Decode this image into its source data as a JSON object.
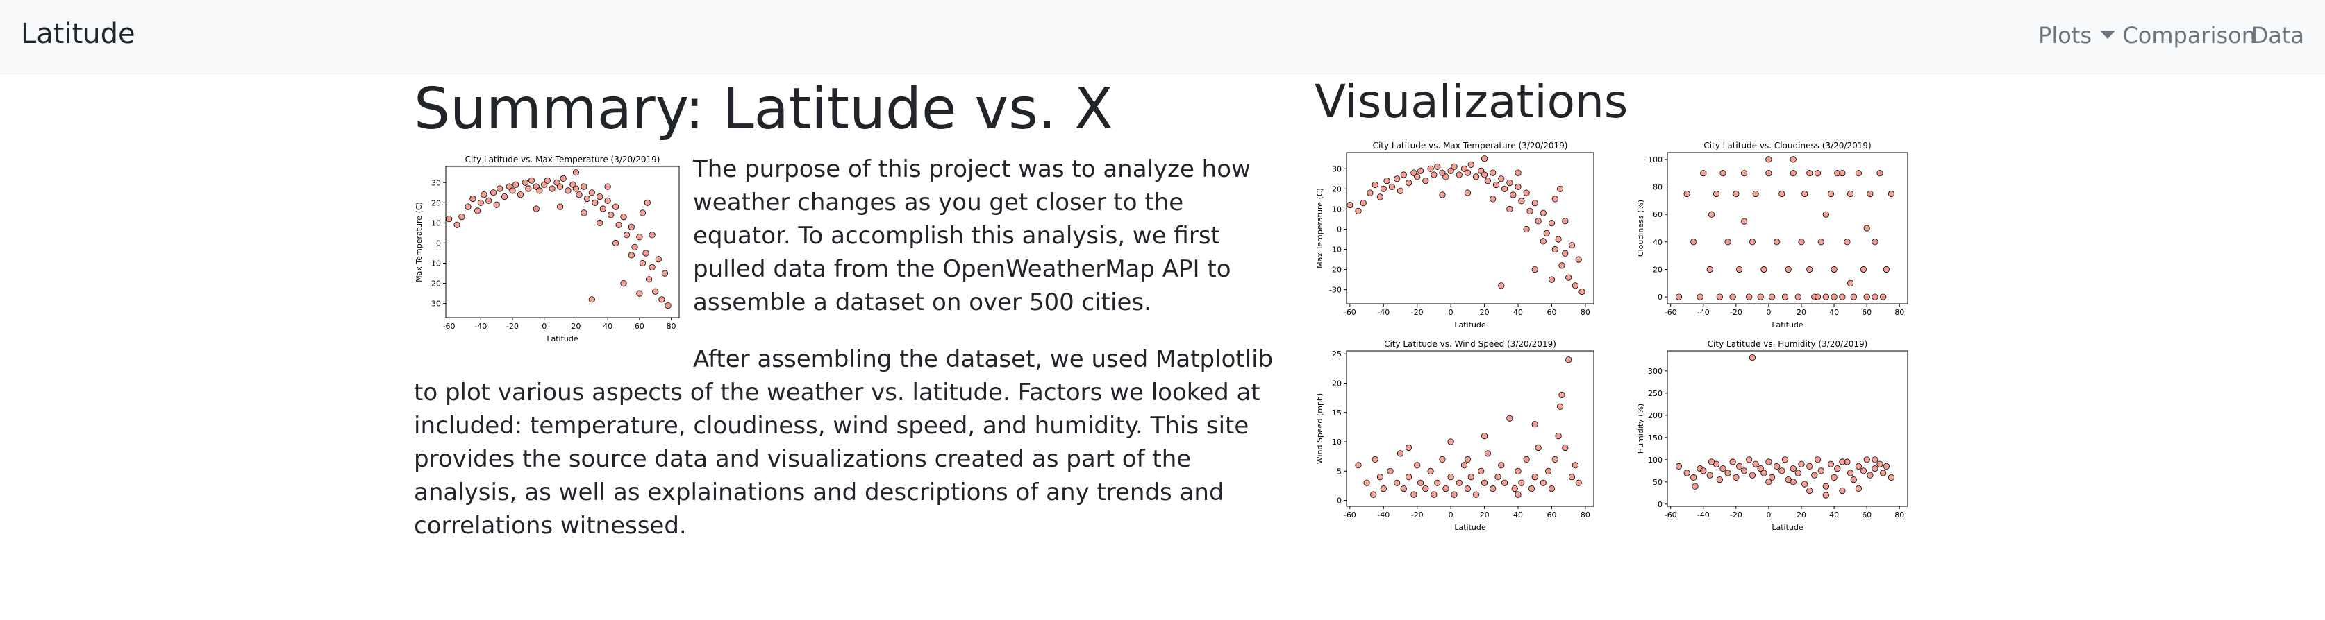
{
  "navbar": {
    "brand": "Latitude",
    "links": [
      {
        "label": "Plots",
        "dropdown": true
      },
      {
        "label": "Comparison",
        "dropdown": false
      },
      {
        "label": "Data",
        "dropdown": false
      }
    ]
  },
  "summary": {
    "title": "Summary: Latitude vs. X",
    "paragraph1": "The purpose of this project was to analyze how weather changes as you get closer to the equator. To accomplish this analysis, we first pulled data from the OpenWeatherMap API to assemble a dataset on over 500 cities.",
    "paragraph2": "After assembling the dataset, we used Matplotlib to plot various aspects of the weather vs. latitude. Factors we looked at included: temperature, cloudiness, wind speed, and humidity. This site provides the source data and visualizations created as part of the analysis, as well as explainations and descriptions of any trends and correlations witnessed."
  },
  "visualizations": {
    "title": "Visualizations"
  },
  "colors": {
    "navbar_bg": "#f8f9fa",
    "marker_fill": "#f08070",
    "marker_edge": "#000000"
  },
  "chart_data": [
    {
      "id": "summary-temp",
      "type": "scatter",
      "title": "City Latitude vs. Max Temperature (3/20/2019)",
      "xlabel": "Latitude",
      "ylabel": "Max Temperature (C)",
      "xlim": [
        -62,
        85
      ],
      "ylim": [
        -37,
        38
      ],
      "xticks": [
        -60,
        -40,
        -20,
        0,
        20,
        40,
        60,
        80
      ],
      "yticks": [
        -30,
        -20,
        -10,
        0,
        10,
        20,
        30
      ],
      "points": [
        [
          -55,
          9
        ],
        [
          -52,
          13
        ],
        [
          -48,
          18
        ],
        [
          -45,
          22
        ],
        [
          -42,
          16
        ],
        [
          -40,
          20
        ],
        [
          -38,
          24
        ],
        [
          -35,
          21
        ],
        [
          -32,
          25
        ],
        [
          -30,
          19
        ],
        [
          -28,
          27
        ],
        [
          -25,
          23
        ],
        [
          -22,
          28
        ],
        [
          -20,
          26
        ],
        [
          -18,
          29
        ],
        [
          -15,
          24
        ],
        [
          -12,
          30
        ],
        [
          -10,
          27
        ],
        [
          -8,
          31
        ],
        [
          -5,
          28
        ],
        [
          -3,
          26
        ],
        [
          0,
          29
        ],
        [
          2,
          31
        ],
        [
          5,
          27
        ],
        [
          8,
          30
        ],
        [
          10,
          28
        ],
        [
          12,
          32
        ],
        [
          15,
          26
        ],
        [
          18,
          29
        ],
        [
          20,
          27
        ],
        [
          22,
          24
        ],
        [
          25,
          28
        ],
        [
          27,
          22
        ],
        [
          30,
          25
        ],
        [
          32,
          20
        ],
        [
          35,
          23
        ],
        [
          37,
          17
        ],
        [
          40,
          21
        ],
        [
          42,
          14
        ],
        [
          45,
          18
        ],
        [
          47,
          9
        ],
        [
          50,
          13
        ],
        [
          52,
          4
        ],
        [
          55,
          8
        ],
        [
          57,
          -2
        ],
        [
          60,
          3
        ],
        [
          62,
          -10
        ],
        [
          64,
          -5
        ],
        [
          66,
          -18
        ],
        [
          68,
          -12
        ],
        [
          70,
          -24
        ],
        [
          72,
          -8
        ],
        [
          74,
          -28
        ],
        [
          76,
          -15
        ],
        [
          78,
          -31
        ],
        [
          35,
          10
        ],
        [
          45,
          0
        ],
        [
          55,
          -6
        ],
        [
          62,
          15
        ],
        [
          -60,
          12
        ],
        [
          30,
          -28
        ],
        [
          50,
          -20
        ],
        [
          68,
          4
        ],
        [
          40,
          28
        ],
        [
          -5,
          17
        ],
        [
          20,
          35
        ],
        [
          60,
          -25
        ],
        [
          10,
          18
        ],
        [
          25,
          15
        ],
        [
          65,
          20
        ]
      ]
    },
    {
      "id": "viz-temp",
      "type": "scatter",
      "title": "City Latitude vs. Max Temperature (3/20/2019)",
      "xlabel": "Latitude",
      "ylabel": "Max Temperature (C)",
      "xlim": [
        -62,
        85
      ],
      "ylim": [
        -37,
        38
      ],
      "xticks": [
        -60,
        -40,
        -20,
        0,
        20,
        40,
        60,
        80
      ],
      "yticks": [
        -30,
        -20,
        -10,
        0,
        10,
        20,
        30
      ],
      "points": [
        [
          -55,
          9
        ],
        [
          -52,
          13
        ],
        [
          -48,
          18
        ],
        [
          -45,
          22
        ],
        [
          -42,
          16
        ],
        [
          -40,
          20
        ],
        [
          -38,
          24
        ],
        [
          -35,
          21
        ],
        [
          -32,
          25
        ],
        [
          -30,
          19
        ],
        [
          -28,
          27
        ],
        [
          -25,
          23
        ],
        [
          -22,
          28
        ],
        [
          -20,
          26
        ],
        [
          -18,
          29
        ],
        [
          -15,
          24
        ],
        [
          -12,
          30
        ],
        [
          -10,
          27
        ],
        [
          -8,
          31
        ],
        [
          -5,
          28
        ],
        [
          -3,
          26
        ],
        [
          0,
          29
        ],
        [
          2,
          31
        ],
        [
          5,
          27
        ],
        [
          8,
          30
        ],
        [
          10,
          28
        ],
        [
          12,
          32
        ],
        [
          15,
          26
        ],
        [
          18,
          29
        ],
        [
          20,
          27
        ],
        [
          22,
          24
        ],
        [
          25,
          28
        ],
        [
          27,
          22
        ],
        [
          30,
          25
        ],
        [
          32,
          20
        ],
        [
          35,
          23
        ],
        [
          37,
          17
        ],
        [
          40,
          21
        ],
        [
          42,
          14
        ],
        [
          45,
          18
        ],
        [
          47,
          9
        ],
        [
          50,
          13
        ],
        [
          52,
          4
        ],
        [
          55,
          8
        ],
        [
          57,
          -2
        ],
        [
          60,
          3
        ],
        [
          62,
          -10
        ],
        [
          64,
          -5
        ],
        [
          66,
          -18
        ],
        [
          68,
          -12
        ],
        [
          70,
          -24
        ],
        [
          72,
          -8
        ],
        [
          74,
          -28
        ],
        [
          76,
          -15
        ],
        [
          78,
          -31
        ],
        [
          35,
          10
        ],
        [
          45,
          0
        ],
        [
          55,
          -6
        ],
        [
          62,
          15
        ],
        [
          -60,
          12
        ],
        [
          30,
          -28
        ],
        [
          50,
          -20
        ],
        [
          68,
          4
        ],
        [
          40,
          28
        ],
        [
          -5,
          17
        ],
        [
          20,
          35
        ],
        [
          60,
          -25
        ],
        [
          10,
          18
        ],
        [
          25,
          15
        ],
        [
          65,
          20
        ]
      ]
    },
    {
      "id": "viz-cloud",
      "type": "scatter",
      "title": "City Latitude vs. Cloudiness (3/20/2019)",
      "xlabel": "Latitude",
      "ylabel": "Cloudiness (%)",
      "xlim": [
        -62,
        85
      ],
      "ylim": [
        -5,
        105
      ],
      "xticks": [
        -60,
        -40,
        -20,
        0,
        20,
        40,
        60,
        80
      ],
      "yticks": [
        0,
        20,
        40,
        60,
        80,
        100
      ],
      "points": [
        [
          -55,
          0
        ],
        [
          -50,
          75
        ],
        [
          -46,
          40
        ],
        [
          -42,
          0
        ],
        [
          -40,
          90
        ],
        [
          -36,
          20
        ],
        [
          -32,
          75
        ],
        [
          -30,
          0
        ],
        [
          -28,
          90
        ],
        [
          -25,
          40
        ],
        [
          -22,
          0
        ],
        [
          -20,
          75
        ],
        [
          -18,
          20
        ],
        [
          -15,
          90
        ],
        [
          -12,
          0
        ],
        [
          -10,
          40
        ],
        [
          -8,
          75
        ],
        [
          -5,
          0
        ],
        [
          -3,
          20
        ],
        [
          0,
          90
        ],
        [
          2,
          0
        ],
        [
          5,
          40
        ],
        [
          8,
          75
        ],
        [
          10,
          0
        ],
        [
          12,
          20
        ],
        [
          15,
          90
        ],
        [
          18,
          0
        ],
        [
          20,
          40
        ],
        [
          22,
          75
        ],
        [
          25,
          20
        ],
        [
          28,
          0
        ],
        [
          30,
          90
        ],
        [
          32,
          40
        ],
        [
          35,
          0
        ],
        [
          38,
          75
        ],
        [
          40,
          20
        ],
        [
          42,
          90
        ],
        [
          45,
          0
        ],
        [
          48,
          40
        ],
        [
          50,
          75
        ],
        [
          52,
          0
        ],
        [
          55,
          90
        ],
        [
          58,
          20
        ],
        [
          60,
          0
        ],
        [
          62,
          75
        ],
        [
          65,
          40
        ],
        [
          68,
          90
        ],
        [
          70,
          0
        ],
        [
          72,
          20
        ],
        [
          75,
          75
        ],
        [
          15,
          100
        ],
        [
          35,
          60
        ],
        [
          -35,
          60
        ],
        [
          50,
          10
        ],
        [
          0,
          100
        ],
        [
          60,
          50
        ],
        [
          -15,
          55
        ],
        [
          25,
          90
        ],
        [
          45,
          90
        ],
        [
          65,
          0
        ],
        [
          30,
          0
        ],
        [
          40,
          0
        ]
      ]
    },
    {
      "id": "viz-wind",
      "type": "scatter",
      "title": "City Latitude vs. Wind Speed (3/20/2019)",
      "xlabel": "Latitude",
      "ylabel": "Wind Speed (mph)",
      "xlim": [
        -62,
        85
      ],
      "ylim": [
        -1,
        25.5
      ],
      "xticks": [
        -60,
        -40,
        -20,
        0,
        20,
        40,
        60,
        80
      ],
      "yticks": [
        0,
        5,
        10,
        15,
        20,
        25
      ],
      "points": [
        [
          -55,
          6
        ],
        [
          -50,
          3
        ],
        [
          -46,
          1
        ],
        [
          -42,
          4
        ],
        [
          -40,
          2
        ],
        [
          -36,
          5
        ],
        [
          -32,
          3
        ],
        [
          -30,
          8
        ],
        [
          -28,
          2
        ],
        [
          -25,
          4
        ],
        [
          -22,
          1
        ],
        [
          -20,
          6
        ],
        [
          -18,
          3
        ],
        [
          -15,
          2
        ],
        [
          -12,
          5
        ],
        [
          -10,
          1
        ],
        [
          -8,
          3
        ],
        [
          -5,
          7
        ],
        [
          -3,
          2
        ],
        [
          0,
          4
        ],
        [
          2,
          1
        ],
        [
          5,
          3
        ],
        [
          8,
          6
        ],
        [
          10,
          2
        ],
        [
          12,
          4
        ],
        [
          15,
          1
        ],
        [
          18,
          5
        ],
        [
          20,
          3
        ],
        [
          22,
          8
        ],
        [
          25,
          2
        ],
        [
          28,
          4
        ],
        [
          30,
          6
        ],
        [
          32,
          3
        ],
        [
          35,
          14
        ],
        [
          38,
          2
        ],
        [
          40,
          5
        ],
        [
          42,
          3
        ],
        [
          45,
          7
        ],
        [
          48,
          2
        ],
        [
          50,
          4
        ],
        [
          52,
          9
        ],
        [
          55,
          3
        ],
        [
          58,
          5
        ],
        [
          60,
          2
        ],
        [
          62,
          7
        ],
        [
          64,
          11
        ],
        [
          66,
          18
        ],
        [
          68,
          9
        ],
        [
          70,
          24
        ],
        [
          72,
          4
        ],
        [
          74,
          6
        ],
        [
          76,
          3
        ],
        [
          -45,
          7
        ],
        [
          0,
          10
        ],
        [
          50,
          13
        ],
        [
          20,
          11
        ],
        [
          65,
          16
        ],
        [
          10,
          7
        ],
        [
          -25,
          9
        ],
        [
          40,
          1
        ]
      ]
    },
    {
      "id": "viz-humid",
      "type": "scatter",
      "title": "City Latitude vs. Humidity (3/20/2019)",
      "xlabel": "Latitude",
      "ylabel": "Humidity (%)",
      "xlim": [
        -62,
        85
      ],
      "ylim": [
        -5,
        345
      ],
      "xticks": [
        -60,
        -40,
        -20,
        0,
        20,
        40,
        60,
        80
      ],
      "yticks": [
        0,
        50,
        100,
        150,
        200,
        250,
        300
      ],
      "points": [
        [
          -55,
          85
        ],
        [
          -50,
          70
        ],
        [
          -46,
          60
        ],
        [
          -42,
          80
        ],
        [
          -40,
          75
        ],
        [
          -36,
          65
        ],
        [
          -32,
          90
        ],
        [
          -30,
          55
        ],
        [
          -28,
          80
        ],
        [
          -25,
          70
        ],
        [
          -22,
          95
        ],
        [
          -20,
          60
        ],
        [
          -18,
          85
        ],
        [
          -15,
          75
        ],
        [
          -12,
          100
        ],
        [
          -10,
          65
        ],
        [
          -8,
          90
        ],
        [
          -5,
          80
        ],
        [
          -3,
          70
        ],
        [
          0,
          95
        ],
        [
          2,
          60
        ],
        [
          5,
          85
        ],
        [
          8,
          75
        ],
        [
          10,
          100
        ],
        [
          12,
          55
        ],
        [
          15,
          80
        ],
        [
          18,
          70
        ],
        [
          20,
          90
        ],
        [
          22,
          45
        ],
        [
          25,
          85
        ],
        [
          28,
          65
        ],
        [
          30,
          100
        ],
        [
          32,
          75
        ],
        [
          35,
          40
        ],
        [
          38,
          90
        ],
        [
          40,
          60
        ],
        [
          42,
          80
        ],
        [
          45,
          30
        ],
        [
          48,
          95
        ],
        [
          50,
          70
        ],
        [
          52,
          55
        ],
        [
          55,
          85
        ],
        [
          58,
          75
        ],
        [
          60,
          100
        ],
        [
          62,
          65
        ],
        [
          65,
          80
        ],
        [
          68,
          90
        ],
        [
          70,
          70
        ],
        [
          72,
          85
        ],
        [
          75,
          60
        ],
        [
          -45,
          40
        ],
        [
          35,
          20
        ],
        [
          15,
          50
        ],
        [
          -10,
          330
        ],
        [
          55,
          35
        ],
        [
          0,
          50
        ],
        [
          65,
          100
        ],
        [
          45,
          95
        ],
        [
          25,
          30
        ],
        [
          -35,
          95
        ]
      ]
    }
  ]
}
